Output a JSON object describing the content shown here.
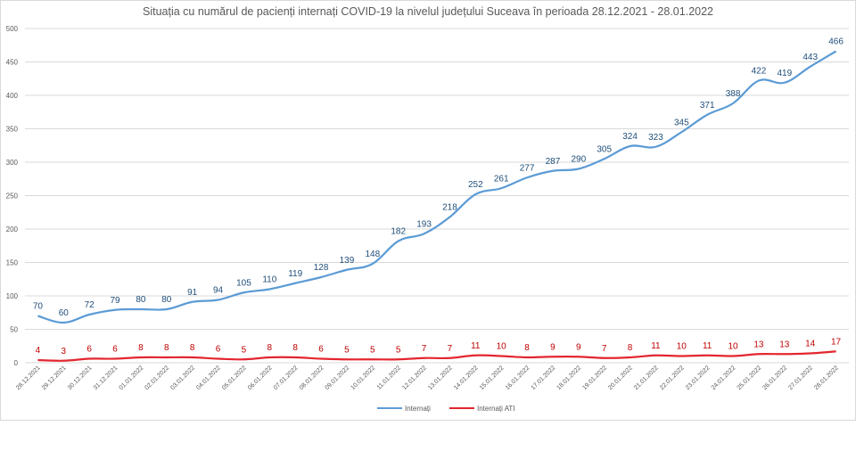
{
  "chart_data": {
    "type": "line",
    "title": "Situația cu numărul de pacienți internați COVID-19 la nivelul județului Suceava în perioada 28.12.2021 - 28.01.2022",
    "categories": [
      "28.12.2021",
      "29.12.2021",
      "30.12.2021",
      "31.12.2021",
      "01.01.2022",
      "02.01.2022",
      "03.01.2022",
      "04.01.2022",
      "05.01.2022",
      "06.01.2022",
      "07.01.2022",
      "08.01.2022",
      "09.01.2022",
      "10.01.2022",
      "11.01.2022",
      "12.01.2022",
      "13.01.2022",
      "14.01.2022",
      "15.01.2022",
      "16.01.2022",
      "17.01.2022",
      "18.01.2022",
      "19.01.2022",
      "20.01.2022",
      "21.01.2022",
      "22.01.2022",
      "23.01.2022",
      "24.01.2022",
      "25.01.2022",
      "26.01.2022",
      "27.01.2022",
      "28.01.2022"
    ],
    "series": [
      {
        "name": "Internați",
        "color": "#5b9bd5",
        "label_color": "#1f4e79",
        "values": [
          70,
          60,
          72,
          79,
          80,
          80,
          91,
          94,
          105,
          110,
          119,
          128,
          139,
          148,
          182,
          193,
          218,
          252,
          261,
          277,
          287,
          290,
          305,
          324,
          323,
          345,
          371,
          388,
          422,
          419,
          443,
          466
        ]
      },
      {
        "name": "Internați ATI",
        "color": "#e3262f",
        "label_color": "#c00000",
        "values": [
          4,
          3,
          6,
          6,
          8,
          8,
          8,
          6,
          5,
          8,
          8,
          6,
          5,
          5,
          5,
          7,
          7,
          11,
          10,
          8,
          9,
          9,
          7,
          8,
          11,
          10,
          11,
          10,
          13,
          13,
          14,
          17
        ]
      }
    ],
    "y_ticks": [
      "0",
      "50",
      "100",
      "150",
      "200",
      "250",
      "300",
      "350",
      "400",
      "450",
      "500"
    ],
    "ylim": [
      0,
      500
    ],
    "grid": true,
    "legend_position": "bottom"
  }
}
